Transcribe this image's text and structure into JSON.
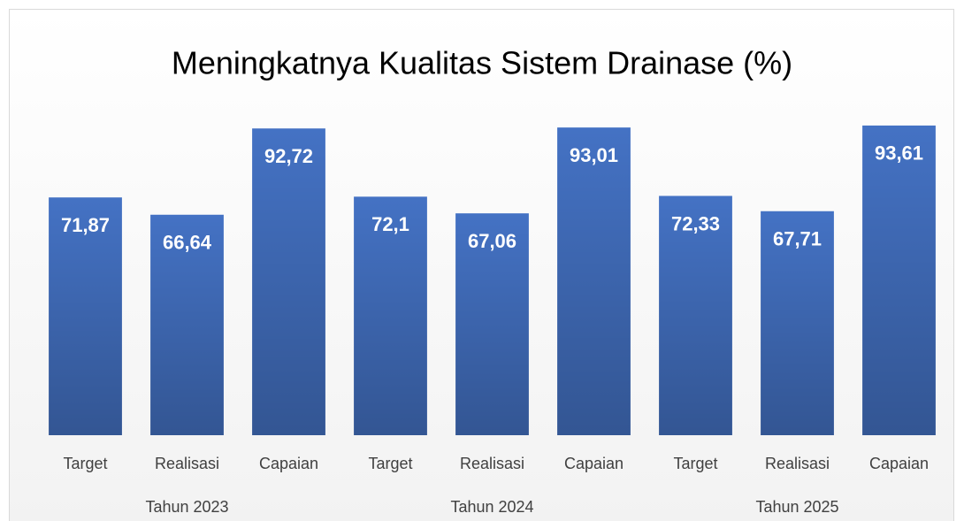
{
  "chart_data": {
    "type": "bar",
    "title": "Meningkatnya Kualitas Sistem Drainase (%)",
    "categories": [
      "Target",
      "Realisasi",
      "Capaian",
      "Target",
      "Realisasi",
      "Capaian",
      "Target",
      "Realisasi",
      "Capaian"
    ],
    "groups": [
      "Tahun 2023",
      "Tahun 2024",
      "Tahun 2025"
    ],
    "values": [
      71.87,
      66.64,
      92.72,
      72.1,
      67.06,
      93.01,
      72.33,
      67.71,
      93.61
    ],
    "value_labels": [
      "71,87",
      "66,64",
      "92,72",
      "72,1",
      "67,06",
      "93,01",
      "72,33",
      "67,71",
      "93,61"
    ],
    "color": "#4472c4",
    "ylim": [
      0,
      100
    ]
  }
}
